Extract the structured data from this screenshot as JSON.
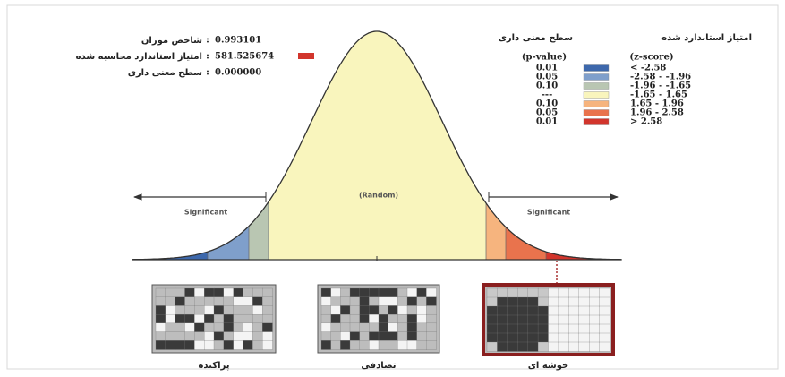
{
  "report": {
    "stats": [
      {
        "label": "شاخص موران",
        "value": "0.993101"
      },
      {
        "label": "امتیاز استاندارد محاسبه شده",
        "value": "581.525674"
      },
      {
        "label": "سطح معنی داری",
        "value": "0.000000"
      }
    ],
    "legend": {
      "z_title": "امتیاز استاندارد شده",
      "p_title": "سطح معنی داری",
      "p_header": "(p-value)",
      "z_header": "(z-score)",
      "rows": [
        {
          "p": "0.01",
          "z": "< -2.58",
          "color": "#3d68ac"
        },
        {
          "p": "0.05",
          "z": "-2.58 - -1.96",
          "color": "#7f9fcb"
        },
        {
          "p": "0.10",
          "z": "-1.96 - -1.65",
          "color": "#b9c6b2"
        },
        {
          "p": "---",
          "z": "-1.65 - 1.65",
          "color": "#f9f5bd"
        },
        {
          "p": "0.10",
          "z": "1.65 - 1.96",
          "color": "#f6b47e"
        },
        {
          "p": "0.05",
          "z": "1.96 - 2.58",
          "color": "#e9734d"
        },
        {
          "p": "0.01",
          "z": "> 2.58",
          "color": "#d2352c"
        }
      ]
    },
    "curve": {
      "left": "Significant",
      "middle": "(Random)",
      "right": "Significant"
    },
    "patterns": [
      "پراکنده",
      "تصادفی",
      "خوشه ای"
    ]
  }
}
